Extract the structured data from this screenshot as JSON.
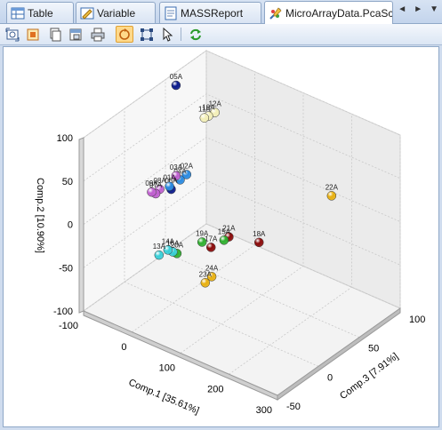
{
  "tabs": [
    {
      "label": "Table",
      "icon": "table-icon",
      "active": false
    },
    {
      "label": "Variable",
      "icon": "variable-icon",
      "active": false
    },
    {
      "label": "MASSReport",
      "icon": "report-icon",
      "active": false
    },
    {
      "label": "MicroArrayData.PcaScor",
      "icon": "scatter-plot-icon",
      "active": true
    }
  ],
  "tab_nav": {
    "prev": "◄",
    "next": "►",
    "menu": "▼"
  },
  "toolbar": {
    "buttons": [
      "export-icon",
      "image-icon",
      "copy-icon",
      "copy-data-icon",
      "print-icon",
      "rotate-icon",
      "zoom-fit-icon",
      "pointer-icon",
      "refresh-icon"
    ],
    "pressed": "rotate-icon"
  },
  "chart_data": {
    "type": "scatter",
    "dimensions": "3d",
    "xlabel": "Comp.1 [35.61%]",
    "ylabel": "Comp.2 [10.90%]",
    "zlabel": "Comp.3 [7.91%]",
    "x_ticks": [
      "-100",
      "0",
      "100",
      "200",
      "300"
    ],
    "y_ticks": [
      "-100",
      "-50",
      "0",
      "50",
      "100"
    ],
    "z_ticks": [
      "-50",
      "0",
      "50",
      "100"
    ],
    "xlim": [
      -100,
      300
    ],
    "ylim": [
      -100,
      100
    ],
    "zlim": [
      -50,
      100
    ],
    "grid": true,
    "points": [
      {
        "label": "05A",
        "x": -95,
        "y": 88,
        "z": 60,
        "color": "#0a1a8c"
      },
      {
        "label": "12A",
        "x": -40,
        "y": 60,
        "z": 75,
        "color": "#f3efb8"
      },
      {
        "label": "11A",
        "x": -50,
        "y": 56,
        "z": 68,
        "color": "#f3efb8"
      },
      {
        "label": "10A",
        "x": -45,
        "y": 58,
        "z": 70,
        "color": "#f3efb8"
      },
      {
        "label": "22A",
        "x": 150,
        "y": -10,
        "z": 105,
        "color": "#e8b010"
      },
      {
        "label": "03A",
        "x": 40,
        "y": 70,
        "z": -20,
        "color": "#c060d0"
      },
      {
        "label": "02A",
        "x": 45,
        "y": 66,
        "z": -10,
        "color": "#2a8ae0"
      },
      {
        "label": "01A",
        "x": 35,
        "y": 60,
        "z": -25,
        "color": "#2a8ae0"
      },
      {
        "label": "04A",
        "x": 40,
        "y": 62,
        "z": -15,
        "color": "#2a8ae0"
      },
      {
        "label": "06A",
        "x": 30,
        "y": 52,
        "z": -20,
        "color": "#0a1a8c"
      },
      {
        "label": "07A",
        "x": 15,
        "y": 50,
        "z": -30,
        "color": "#c060d0"
      },
      {
        "label": "09A",
        "x": 10,
        "y": 52,
        "z": -32,
        "color": "#c060d0"
      },
      {
        "label": "08A",
        "x": 20,
        "y": 55,
        "z": -28,
        "color": "#c060d0"
      },
      {
        "label": "13A",
        "x": 5,
        "y": -30,
        "z": -20,
        "color": "#3ad0d8"
      },
      {
        "label": "14A",
        "x": 15,
        "y": -25,
        "z": -15,
        "color": "#3ad0d8"
      },
      {
        "label": "16A",
        "x": 20,
        "y": -28,
        "z": -12,
        "color": "#3ad0d8"
      },
      {
        "label": "20A",
        "x": 25,
        "y": -30,
        "z": -10,
        "color": "#30b030"
      },
      {
        "label": "19A",
        "x": 60,
        "y": -15,
        "z": 0,
        "color": "#30b030"
      },
      {
        "label": "15A",
        "x": 80,
        "y": -18,
        "z": 15,
        "color": "#30b030"
      },
      {
        "label": "21A",
        "x": 85,
        "y": -15,
        "z": 18,
        "color": "#8a0a0a"
      },
      {
        "label": "17A",
        "x": 70,
        "y": -22,
        "z": 5,
        "color": "#8a0a0a"
      },
      {
        "label": "18A",
        "x": 110,
        "y": -30,
        "z": 40,
        "color": "#8a0a0a"
      },
      {
        "label": "24A",
        "x": 80,
        "y": -50,
        "z": 0,
        "color": "#e8b010"
      },
      {
        "label": "23A",
        "x": 75,
        "y": -55,
        "z": -5,
        "color": "#e8b010"
      }
    ]
  }
}
